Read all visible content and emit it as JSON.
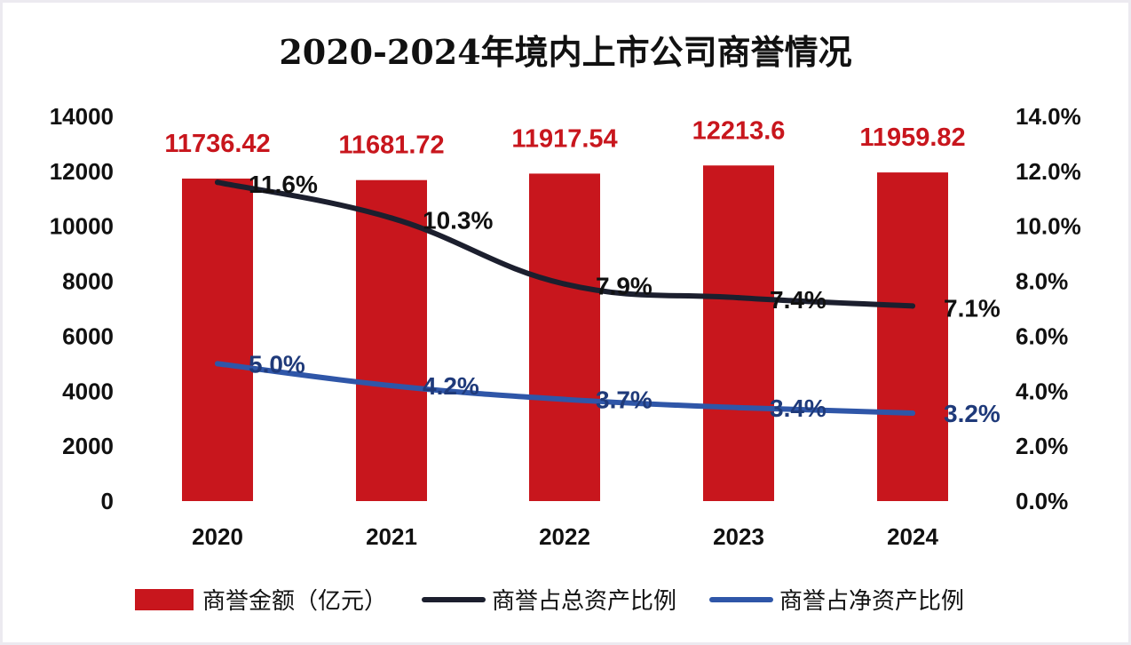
{
  "chart_data": {
    "type": "bar",
    "title": "2020-2024年境内上市公司商誉情况",
    "categories": [
      "2020",
      "2021",
      "2022",
      "2023",
      "2024"
    ],
    "ylim": [
      0,
      14000
    ],
    "y_ticks": [
      "0",
      "2000",
      "4000",
      "6000",
      "8000",
      "10000",
      "12000",
      "14000"
    ],
    "y2lim": [
      0,
      14
    ],
    "y2_ticks": [
      "0.0%",
      "2.0%",
      "4.0%",
      "6.0%",
      "8.0%",
      "10.0%",
      "12.0%",
      "14.0%"
    ],
    "series": [
      {
        "name": "商誉金额（亿元）",
        "type": "bar",
        "axis": "left",
        "color": "#c8161d",
        "values": [
          11736.42,
          11681.72,
          11917.54,
          12213.6,
          11959.82
        ],
        "labels": [
          "11736.42",
          "11681.72",
          "11917.54",
          "12213.6",
          "11959.82"
        ]
      },
      {
        "name": "商誉占总资产比例",
        "type": "line",
        "axis": "right",
        "color": "#1c1f2e",
        "values": [
          11.6,
          10.3,
          7.9,
          7.4,
          7.1
        ],
        "labels": [
          "11.6%",
          "10.3%",
          "7.9%",
          "7.4%",
          "7.1%"
        ]
      },
      {
        "name": "商誉占净资产比例",
        "type": "line",
        "axis": "right",
        "color": "#2f56a8",
        "values": [
          5.0,
          4.2,
          3.7,
          3.4,
          3.2
        ],
        "labels": [
          "5.0%",
          "4.2%",
          "3.7%",
          "3.4%",
          "3.2%"
        ]
      }
    ],
    "bar_label_color": "#c8161d",
    "net_label_color": "#1f3a7a",
    "legend_position": "bottom"
  }
}
